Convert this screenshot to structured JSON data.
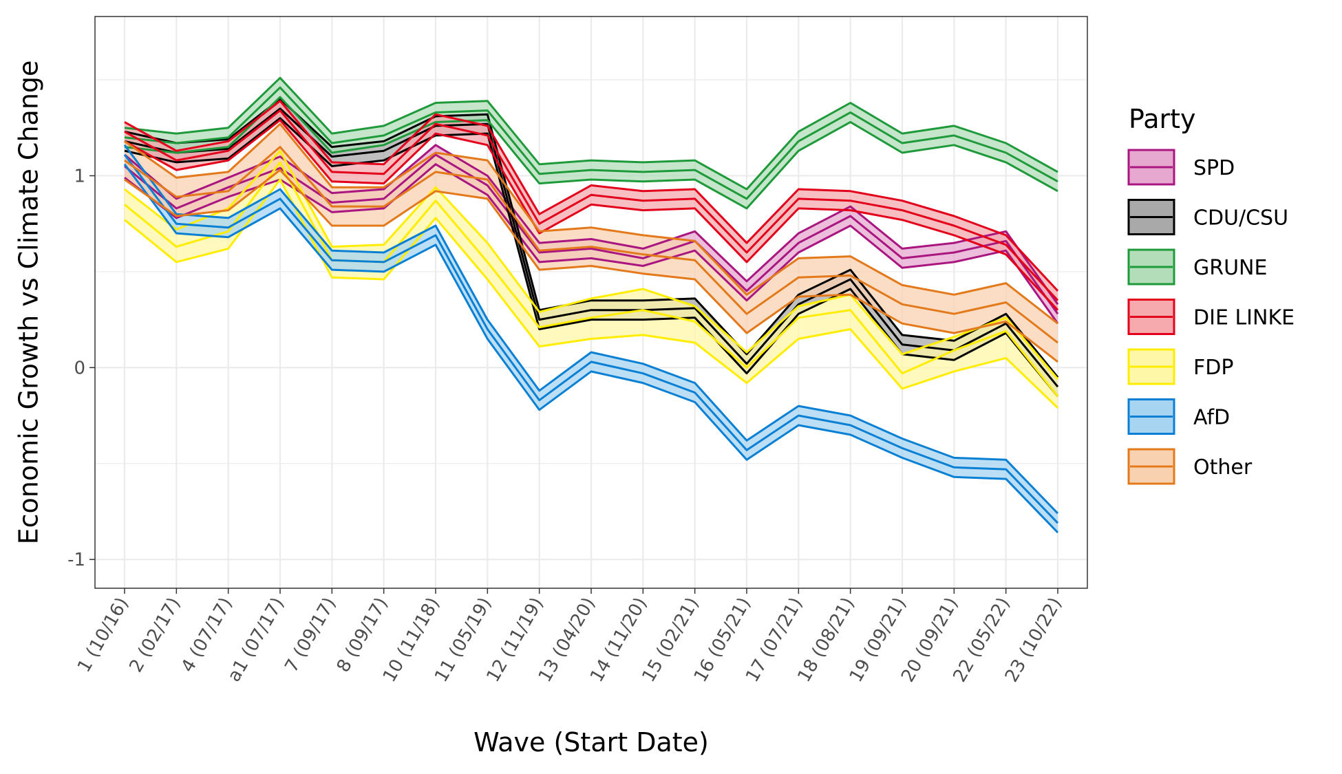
{
  "chart_data": {
    "type": "line",
    "xlabel": "Wave (Start Date)",
    "ylabel": "Economic Growth vs Climate Change",
    "ylim": [
      -1.15,
      1.83
    ],
    "y_ticks": [
      -1,
      0,
      1
    ],
    "y_tick_labels": [
      "-1",
      "0",
      "1"
    ],
    "grid": true,
    "legend_title": "Party",
    "legend_position": "right",
    "categories": [
      "1 (10/16)",
      "2 (02/17)",
      "4 (07/17)",
      "a1 (07/17)",
      "7 (09/17)",
      "8 (09/17)",
      "10 (11/18)",
      "11 (05/19)",
      "12 (11/19)",
      "13 (04/20)",
      "14 (11/20)",
      "15 (02/21)",
      "16 (05/21)",
      "17 (07/21)",
      "18 (08/21)",
      "19 (09/21)",
      "20 (09/21)",
      "22 (05/22)",
      "23 (10/22)"
    ],
    "series": [
      {
        "name": "SPD",
        "color": "#AA1680",
        "fill": "#E6A8CF",
        "values": [
          1.05,
          0.83,
          0.94,
          1.04,
          0.86,
          0.88,
          1.11,
          0.95,
          0.6,
          0.62,
          0.57,
          0.66,
          0.4,
          0.65,
          0.79,
          0.57,
          0.6,
          0.66,
          0.28
        ],
        "lower": [
          0.99,
          0.78,
          0.89,
          0.98,
          0.81,
          0.83,
          1.06,
          0.9,
          0.55,
          0.57,
          0.53,
          0.61,
          0.35,
          0.6,
          0.74,
          0.52,
          0.55,
          0.61,
          0.23
        ],
        "upper": [
          1.11,
          0.88,
          0.99,
          1.1,
          0.91,
          0.93,
          1.16,
          1.0,
          0.65,
          0.67,
          0.62,
          0.71,
          0.45,
          0.7,
          0.84,
          0.62,
          0.65,
          0.71,
          0.33
        ]
      },
      {
        "name": "CDU/CSU",
        "color": "#000000",
        "fill": "#A9A9A9",
        "values": [
          1.18,
          1.12,
          1.14,
          1.35,
          1.1,
          1.13,
          1.26,
          1.27,
          0.25,
          0.3,
          0.3,
          0.31,
          0.02,
          0.33,
          0.46,
          0.12,
          0.09,
          0.23,
          -0.1
        ],
        "lower": [
          1.13,
          1.07,
          1.09,
          1.3,
          1.05,
          1.08,
          1.21,
          1.22,
          0.2,
          0.25,
          0.25,
          0.26,
          -0.03,
          0.28,
          0.41,
          0.07,
          0.04,
          0.18,
          -0.15
        ],
        "upper": [
          1.23,
          1.17,
          1.19,
          1.4,
          1.15,
          1.18,
          1.31,
          1.32,
          0.3,
          0.35,
          0.35,
          0.36,
          0.07,
          0.38,
          0.51,
          0.17,
          0.14,
          0.28,
          -0.05
        ]
      },
      {
        "name": "GRUNE",
        "color": "#1F9A3B",
        "fill": "#B2DDB8",
        "values": [
          1.2,
          1.17,
          1.2,
          1.46,
          1.17,
          1.21,
          1.33,
          1.34,
          1.01,
          1.03,
          1.02,
          1.03,
          0.88,
          1.18,
          1.33,
          1.17,
          1.21,
          1.12,
          0.97
        ],
        "lower": [
          1.15,
          1.12,
          1.15,
          1.41,
          1.12,
          1.16,
          1.28,
          1.29,
          0.96,
          0.98,
          0.97,
          0.98,
          0.83,
          1.13,
          1.28,
          1.12,
          1.16,
          1.07,
          0.92
        ],
        "upper": [
          1.25,
          1.22,
          1.25,
          1.51,
          1.22,
          1.26,
          1.38,
          1.39,
          1.06,
          1.08,
          1.07,
          1.08,
          0.93,
          1.23,
          1.38,
          1.22,
          1.26,
          1.17,
          1.02
        ]
      },
      {
        "name": "DIE LINKE",
        "color": "#E3001B",
        "fill": "#F6AAAE",
        "values": [
          1.23,
          1.08,
          1.13,
          1.34,
          1.02,
          1.01,
          1.27,
          1.21,
          0.75,
          0.9,
          0.87,
          0.88,
          0.6,
          0.88,
          0.87,
          0.82,
          0.74,
          0.64,
          0.35
        ],
        "lower": [
          1.18,
          1.03,
          1.08,
          1.29,
          0.97,
          0.96,
          1.22,
          1.16,
          0.7,
          0.85,
          0.82,
          0.83,
          0.55,
          0.83,
          0.82,
          0.77,
          0.69,
          0.59,
          0.3
        ],
        "upper": [
          1.28,
          1.13,
          1.18,
          1.39,
          1.07,
          1.06,
          1.32,
          1.26,
          0.8,
          0.95,
          0.92,
          0.93,
          0.65,
          0.93,
          0.92,
          0.87,
          0.79,
          0.69,
          0.4
        ]
      },
      {
        "name": "FDP",
        "color": "#FFED00",
        "fill": "#FFF7A8",
        "values": [
          0.85,
          0.63,
          0.71,
          1.07,
          0.56,
          0.55,
          0.87,
          0.55,
          0.21,
          0.26,
          0.3,
          0.24,
          0.0,
          0.26,
          0.3,
          -0.03,
          0.09,
          0.19,
          -0.15
        ],
        "lower": [
          0.8,
          0.58,
          0.66,
          1.02,
          0.51,
          0.5,
          0.82,
          0.5,
          0.16,
          0.21,
          0.25,
          0.19,
          -0.05,
          0.21,
          0.25,
          -0.08,
          0.04,
          0.14,
          -0.2
        ],
        "upper": [
          0.9,
          0.68,
          0.76,
          1.12,
          0.61,
          0.6,
          0.92,
          0.6,
          0.26,
          0.31,
          0.35,
          0.29,
          0.05,
          0.31,
          0.35,
          0.02,
          0.14,
          0.24,
          -0.1
        ],
        "lower_band": [
          0.77,
          0.55,
          0.62,
          0.98,
          0.47,
          0.46,
          0.78,
          0.46,
          0.11,
          0.15,
          0.17,
          0.13,
          -0.08,
          0.15,
          0.2,
          -0.11,
          -0.02,
          0.05,
          -0.21
        ],
        "upper_band": [
          0.93,
          0.72,
          0.83,
          1.13,
          0.63,
          0.64,
          0.94,
          0.65,
          0.29,
          0.36,
          0.41,
          0.32,
          0.08,
          0.32,
          0.38,
          0.07,
          0.16,
          0.26,
          -0.06
        ]
      },
      {
        "name": "AfD",
        "color": "#0A80D4",
        "fill": "#A7D4F1",
        "values": [
          1.11,
          0.75,
          0.73,
          0.88,
          0.56,
          0.55,
          0.69,
          0.2,
          -0.17,
          0.03,
          -0.03,
          -0.13,
          -0.43,
          -0.25,
          -0.3,
          -0.42,
          -0.52,
          -0.53,
          -0.81
        ],
        "lower": [
          1.06,
          0.7,
          0.68,
          0.83,
          0.51,
          0.5,
          0.64,
          0.15,
          -0.22,
          -0.02,
          -0.08,
          -0.18,
          -0.48,
          -0.3,
          -0.35,
          -0.47,
          -0.57,
          -0.58,
          -0.86
        ],
        "upper": [
          1.16,
          0.8,
          0.78,
          0.93,
          0.61,
          0.6,
          0.74,
          0.25,
          -0.12,
          0.08,
          0.02,
          -0.08,
          -0.38,
          -0.2,
          -0.25,
          -0.37,
          -0.47,
          -0.48,
          -0.76
        ]
      },
      {
        "name": "Other",
        "color": "#E3791B",
        "fill": "#F8D2B0",
        "values": [
          1.08,
          0.89,
          0.92,
          1.15,
          0.84,
          0.84,
          1.02,
          0.98,
          0.61,
          0.63,
          0.59,
          0.56,
          0.28,
          0.47,
          0.48,
          0.33,
          0.28,
          0.34,
          0.13
        ],
        "lower": [
          0.98,
          0.79,
          0.82,
          1.03,
          0.74,
          0.74,
          0.92,
          0.88,
          0.51,
          0.53,
          0.49,
          0.46,
          0.18,
          0.37,
          0.38,
          0.23,
          0.18,
          0.24,
          0.03
        ],
        "upper": [
          1.18,
          0.99,
          1.02,
          1.27,
          0.94,
          0.94,
          1.12,
          1.08,
          0.71,
          0.73,
          0.69,
          0.66,
          0.38,
          0.57,
          0.58,
          0.43,
          0.38,
          0.44,
          0.23
        ]
      }
    ]
  }
}
